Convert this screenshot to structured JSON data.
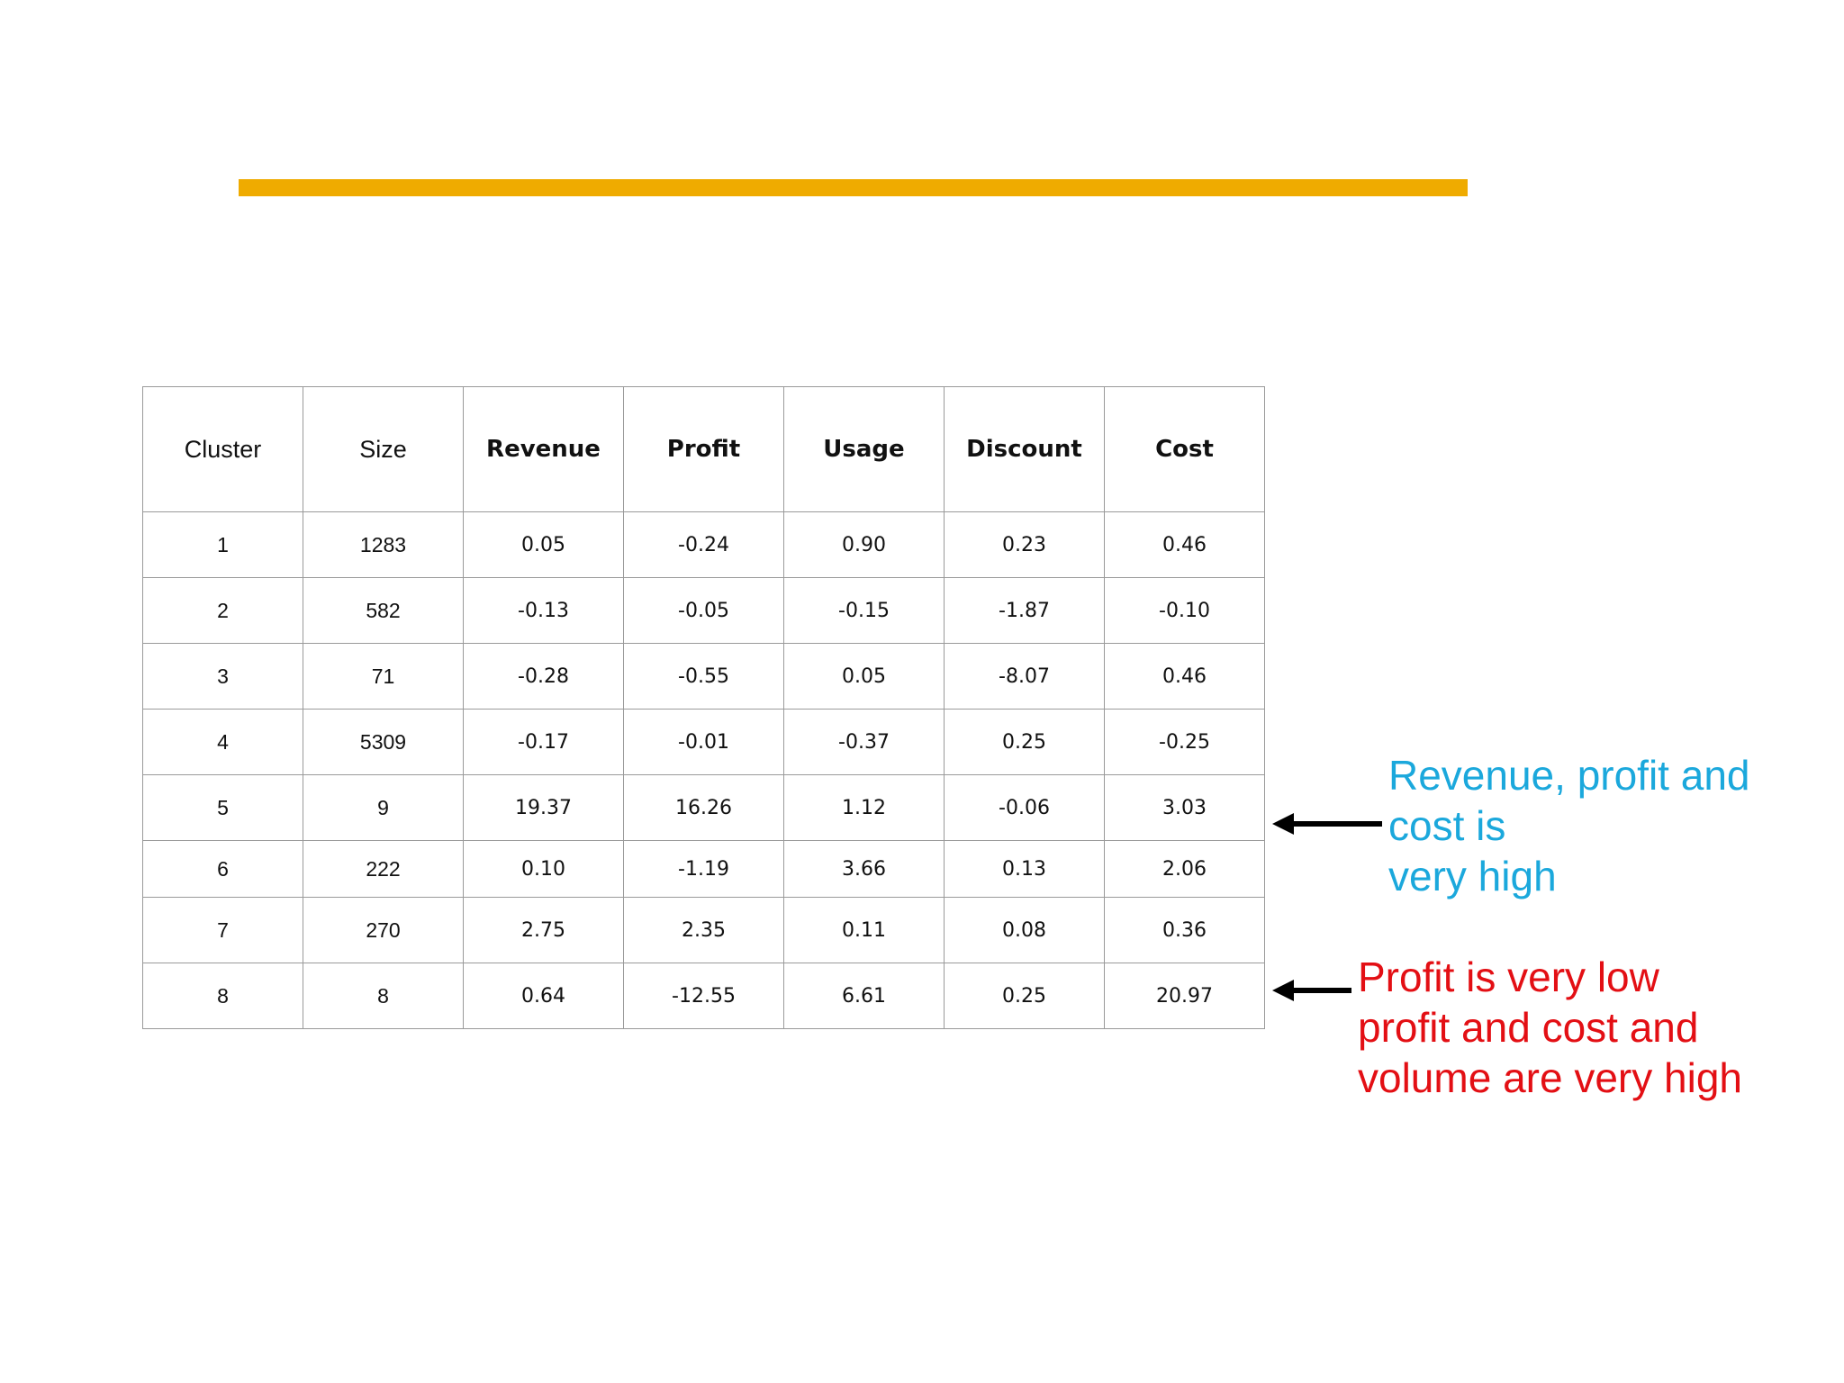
{
  "table": {
    "headers": [
      "Cluster",
      "Size",
      "Revenue",
      "Profit",
      "Usage",
      "Discount",
      "Cost"
    ],
    "rows": [
      [
        "1",
        "1283",
        "0.05",
        "-0.24",
        "0.90",
        "0.23",
        "0.46"
      ],
      [
        "2",
        "582",
        "-0.13",
        "-0.05",
        "-0.15",
        "-1.87",
        "-0.10"
      ],
      [
        "3",
        "71",
        "-0.28",
        "-0.55",
        "0.05",
        "-8.07",
        "0.46"
      ],
      [
        "4",
        "5309",
        "-0.17",
        "-0.01",
        "-0.37",
        "0.25",
        "-0.25"
      ],
      [
        "5",
        "9",
        "19.37",
        "16.26",
        "1.12",
        "-0.06",
        "3.03"
      ],
      [
        "6",
        "222",
        "0.10",
        "-1.19",
        "3.66",
        "0.13",
        "2.06"
      ],
      [
        "7",
        "270",
        "2.75",
        "2.35",
        "0.11",
        "0.08",
        "0.36"
      ],
      [
        "8",
        "8",
        "0.64",
        "-12.55",
        "6.61",
        "0.25",
        "20.97"
      ]
    ]
  },
  "annotations": {
    "blue": {
      "lines": [
        "Revenue, profit and",
        "cost is",
        "very high"
      ],
      "color": "#1ba8dc",
      "icon": "left-arrow-icon"
    },
    "red": {
      "lines": [
        "Profit is very low",
        "profit and cost and",
        "volume are very high"
      ],
      "color": "#e30f14",
      "icon": "left-arrow-icon"
    }
  },
  "colors": {
    "accent_bar": "#EFAB00",
    "cluster_1_label": "#1f9a49",
    "highlight_blue": "#1ba8dc",
    "highlight_red": "#e30f14"
  }
}
